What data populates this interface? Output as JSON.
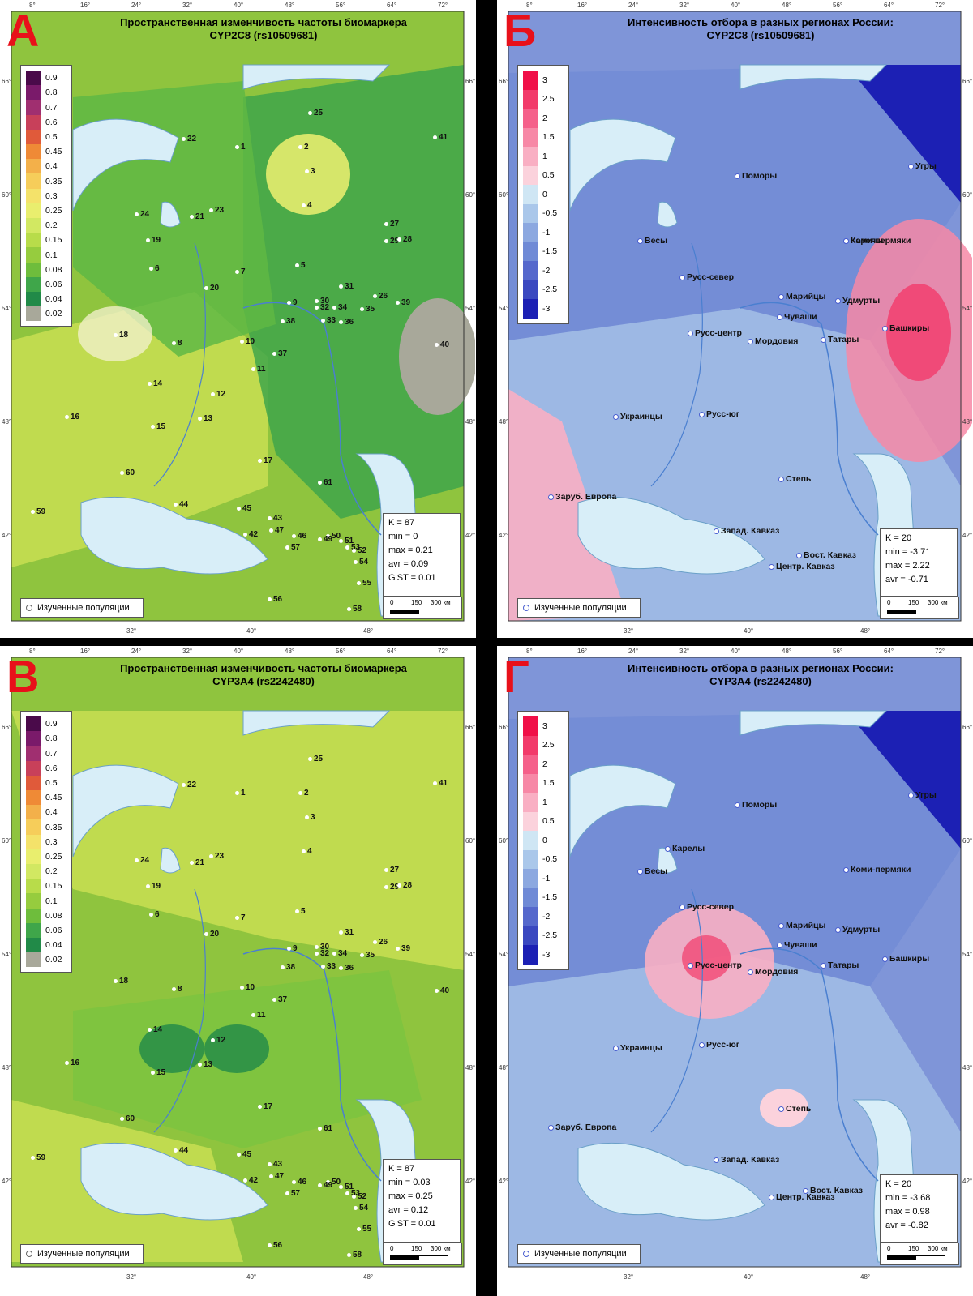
{
  "panels": [
    {
      "id": "A",
      "letter": "А",
      "title_line1": "Пространственная изменчивость частоты биомаркера",
      "title_line2": "CYP2C8 (rs10509681)",
      "legend": [
        "0.9",
        "0.8",
        "0.7",
        "0.6",
        "0.5",
        "0.45",
        "0.4",
        "0.35",
        "0.3",
        "0.25",
        "0.2",
        "0.15",
        "0.1",
        "0.08",
        "0.06",
        "0.04",
        "0.02"
      ],
      "stats": [
        "K = 87",
        "min = 0",
        "max = 0.21",
        "avr = 0.09",
        "G ST = 0.01"
      ],
      "studied_label": "Изученные популяции"
    },
    {
      "id": "B",
      "letter": "Б",
      "title_line1": "Интенсивность отбора в разных регионах России:",
      "title_line2": "CYP2C8 (rs10509681)",
      "legend": [
        "3",
        "2.5",
        "2",
        "1.5",
        "1",
        "0.5",
        "0",
        "-0.5",
        "-1",
        "-1.5",
        "-2",
        "-2.5",
        "-3"
      ],
      "stats": [
        "K = 20",
        "min = -3.71",
        "max = 2.22",
        "avr = -0.71"
      ],
      "studied_label": "Изученные популяции"
    },
    {
      "id": "C",
      "letter": "В",
      "title_line1": "Пространственная изменчивость частоты биомаркера",
      "title_line2": "CYP3A4 (rs2242480)",
      "legend": [
        "0.9",
        "0.8",
        "0.7",
        "0.6",
        "0.5",
        "0.45",
        "0.4",
        "0.35",
        "0.3",
        "0.25",
        "0.2",
        "0.15",
        "0.1",
        "0.08",
        "0.06",
        "0.04",
        "0.02"
      ],
      "stats": [
        "K = 87",
        "min = 0.03",
        "max = 0.25",
        "avr = 0.12",
        "G ST = 0.01"
      ],
      "studied_label": "Изученные популяции"
    },
    {
      "id": "D",
      "letter": "Г",
      "title_line1": "Интенсивность отбора в разных регионах России:",
      "title_line2": "CYP3A4 (rs2242480)",
      "legend": [
        "3",
        "2.5",
        "2",
        "1.5",
        "1",
        "0.5",
        "0",
        "-0.5",
        "-1",
        "-1.5",
        "-2",
        "-2.5",
        "-3"
      ],
      "stats": [
        "K = 20",
        "min = -3.68",
        "max = 0.98",
        "avr = -0.82"
      ],
      "studied_label": "Изученные популяции"
    }
  ],
  "ticks_top": [
    "8°",
    "16°",
    "24°",
    "32°",
    "40°",
    "48°",
    "56°",
    "64°",
    "72°"
  ],
  "ticks_bottom": [
    "32°",
    "40°",
    "48°"
  ],
  "lat_labels": [
    "66°",
    "60°",
    "54°",
    "48°",
    "42°"
  ],
  "scale_labels": [
    "0",
    "150",
    "300 км"
  ],
  "populations": [
    "25",
    "22",
    "1",
    "2",
    "3",
    "41",
    "4",
    "24",
    "21",
    "23",
    "27",
    "29",
    "28",
    "19",
    "5",
    "6",
    "7",
    "31",
    "20",
    "26",
    "9",
    "30",
    "32",
    "34",
    "35",
    "39",
    "38",
    "33",
    "36",
    "18",
    "8",
    "10",
    "37",
    "40",
    "11",
    "14",
    "12",
    "13",
    "16",
    "15",
    "17",
    "60",
    "61",
    "59",
    "44",
    "45",
    "43",
    "46",
    "50",
    "53",
    "52",
    "54",
    "55",
    "56",
    "58",
    "57",
    "49",
    "42",
    "47",
    "51"
  ],
  "regions": [
    "Поморы",
    "Карелы",
    "Коми-пермяки",
    "Весы",
    "Русс-север",
    "Марийцы",
    "Удмурты",
    "Чуваши",
    "Башкиры",
    "Русс-центр",
    "Мордовия",
    "Татары",
    "Украинцы",
    "Русс-юг",
    "Степь",
    "Заруб. Европа",
    "Запад. Кавказ",
    "Вост. Кавказ",
    "Центр. Кавказ",
    "Угры"
  ],
  "colors": {
    "freq": [
      "#4a0a4a",
      "#7a1a6a",
      "#a02f70",
      "#c8405a",
      "#e05a3a",
      "#ef8a36",
      "#f3b04a",
      "#f6cd5a",
      "#f4e26a",
      "#e9ee6e",
      "#d2e862",
      "#b8dc4a",
      "#96cc3e",
      "#6ebd3c",
      "#3fa64a",
      "#218a48",
      "#a8a89a"
    ],
    "sel": [
      "#f01048",
      "#f23a6a",
      "#f5608a",
      "#f788a6",
      "#f9afc3",
      "#fbd2dc",
      "#cfe6f4",
      "#aac7ea",
      "#8ca8e0",
      "#6f8ad6",
      "#5568cc",
      "#3a48c0",
      "#1c20b4"
    ]
  }
}
